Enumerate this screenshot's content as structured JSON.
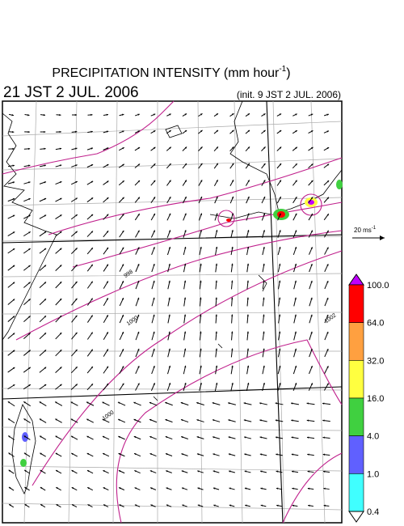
{
  "header": {
    "title": "PRECIPITATION INTENSITY (mm hour",
    "title_sup": "-1",
    "title_end": ")",
    "time": "21 JST 2 JUL. 2006",
    "init": "(init. 9 JST 2 JUL. 2006)"
  },
  "wind_scale": {
    "label": "20 ms",
    "sup": "-1"
  },
  "isobars": {
    "labels": [
      "998",
      "1000",
      "1002",
      "1000"
    ]
  },
  "colorbar": {
    "labels": [
      "100.0",
      "64.0",
      "32.0",
      "16.0",
      "4.0",
      "1.0",
      "0.4"
    ],
    "colors": [
      "#ff0000",
      "#ffa040",
      "#ffff40",
      "#40d040",
      "#6060ff",
      "#40ffff"
    ],
    "over_color": "#c000ff",
    "under_color": "#ffffff"
  }
}
